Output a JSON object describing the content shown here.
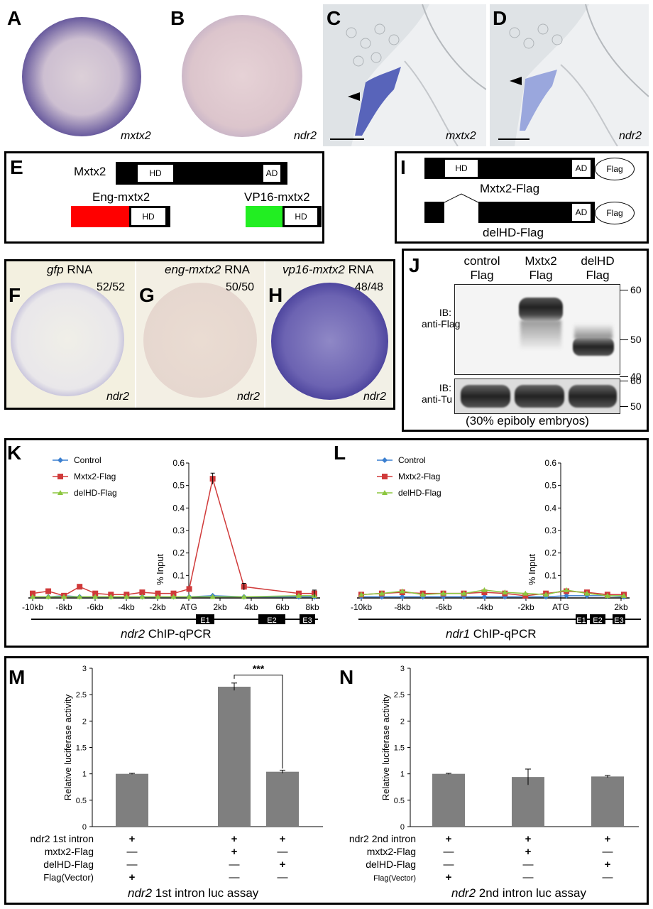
{
  "panels": {
    "A": {
      "letter": "A",
      "gene": "mxtx2"
    },
    "B": {
      "letter": "B",
      "gene": "ndr2"
    },
    "C": {
      "letter": "C",
      "gene": "mxtx2"
    },
    "D": {
      "letter": "D",
      "gene": "ndr2"
    },
    "E": {
      "letter": "E",
      "construct": "Mxtx2",
      "hd": "HD",
      "ad": "AD",
      "eng": "Eng-mxtx2",
      "vp16": "VP16-mxtx2"
    },
    "F": {
      "letter": "F",
      "title_gene": "gfp",
      "title_suffix": " RNA",
      "count": "52/52",
      "gene": "ndr2"
    },
    "G": {
      "letter": "G",
      "title_gene": "eng-mxtx2",
      "title_suffix": " RNA",
      "count": "50/50",
      "gene": "ndr2"
    },
    "H": {
      "letter": "H",
      "title_gene": "vp16-mxtx2",
      "title_suffix": " RNA",
      "count": "48/48",
      "gene": "ndr2"
    },
    "I": {
      "letter": "I",
      "hd": "HD",
      "ad": "AD",
      "flag": "Flag",
      "label1": "Mxtx2-Flag",
      "label2": "delHD-Flag"
    },
    "J": {
      "letter": "J",
      "lanes": [
        "control\nFlag",
        "Mxtx2\nFlag",
        "delHD\nFlag"
      ],
      "blot1_label": "IB:\nanti-Flag",
      "blot2_label": "IB:\nanti-Tu",
      "markers_top": [
        "60",
        "50",
        "40"
      ],
      "markers_bottom": [
        "60",
        "50"
      ],
      "caption": "(30% epiboly embryos)"
    },
    "K": {
      "letter": "K",
      "caption_gene": "ndr2",
      "caption_rest": " ChIP-qPCR"
    },
    "L": {
      "letter": "L",
      "caption_gene": "ndr1",
      "caption_rest": " ChIP-qPCR"
    },
    "M": {
      "letter": "M",
      "caption_gene": "ndr2",
      "caption_rest": " 1st intron luc assay"
    },
    "N": {
      "letter": "N",
      "caption_gene": "ndr2",
      "caption_rest": " 2nd intron luc assay"
    }
  },
  "chart_data": [
    {
      "id": "K",
      "type": "line",
      "ylabel": "% Input",
      "ylim": [
        0,
        0.6
      ],
      "yticks": [
        "0.1",
        "0.2",
        "0.3",
        "0.4",
        "0.5",
        "0.6"
      ],
      "xticks": [
        "-10kb",
        "-8kb",
        "-6kb",
        "-4kb",
        "-2kb",
        "ATG",
        "2kb",
        "4kb",
        "6kb",
        "8kb"
      ],
      "x": [
        -10,
        -9,
        -8,
        -7,
        -6,
        -5,
        -4,
        -3,
        -2,
        -1,
        0,
        1.5,
        3.5,
        7,
        8
      ],
      "series": [
        {
          "name": "Control",
          "color": "#3a7fd0",
          "values": [
            0.005,
            0.005,
            0.01,
            0.005,
            0.005,
            0.005,
            0.005,
            0.005,
            0.005,
            0.005,
            0.005,
            0.01,
            0.005,
            0.005,
            0.005
          ]
        },
        {
          "name": "Mxtx2-Flag",
          "color": "#d03a3a",
          "values": [
            0.02,
            0.03,
            0.01,
            0.05,
            0.02,
            0.015,
            0.015,
            0.025,
            0.02,
            0.02,
            0.04,
            0.53,
            0.05,
            0.02,
            0.02
          ]
        },
        {
          "name": "delHD-Flag",
          "color": "#8cc63f",
          "values": [
            0.005,
            0.005,
            0.005,
            0.005,
            0.005,
            0.005,
            0.005,
            0.005,
            0.005,
            0.005,
            0.005,
            0.005,
            0.005,
            0.01,
            0.01
          ]
        }
      ],
      "gene_model": {
        "exons": [
          "E1",
          "E2",
          "E3"
        ]
      }
    },
    {
      "id": "L",
      "type": "line",
      "ylabel": "% Input",
      "ylim": [
        0,
        0.6
      ],
      "yticks": [
        "0.1",
        "0.2",
        "0.3",
        "0.4",
        "0.5",
        "0.6"
      ],
      "xticks": [
        "-10kb",
        "-8kb",
        "-6kb",
        "-4kb",
        "-2kb",
        "ATG",
        "2kb"
      ],
      "x": [
        -10,
        -9,
        -8,
        -7,
        -6,
        -5,
        -4,
        -3,
        -2,
        -1,
        0,
        1,
        2,
        2.8
      ],
      "series": [
        {
          "name": "Control",
          "color": "#3a7fd0",
          "values": [
            0.005,
            0.005,
            0.005,
            0.005,
            0.005,
            0.005,
            0.005,
            0.005,
            0.005,
            0.005,
            0.01,
            0.01,
            0.01,
            0.005
          ]
        },
        {
          "name": "Mxtx2-Flag",
          "color": "#d03a3a",
          "values": [
            0.015,
            0.02,
            0.025,
            0.02,
            0.02,
            0.02,
            0.025,
            0.02,
            0.01,
            0.02,
            0.03,
            0.025,
            0.015,
            0.015
          ]
        },
        {
          "name": "delHD-Flag",
          "color": "#8cc63f",
          "values": [
            0.015,
            0.02,
            0.03,
            0.015,
            0.02,
            0.02,
            0.035,
            0.025,
            0.02,
            0.015,
            0.035,
            0.02,
            0.01,
            0.01
          ]
        }
      ],
      "gene_model": {
        "exons": [
          "E1",
          "E2",
          "E3"
        ]
      }
    },
    {
      "id": "M",
      "type": "bar",
      "ylabel": "Relative luciferase activity",
      "ylim": [
        0,
        3
      ],
      "yticks": [
        "0",
        "0.5",
        "1",
        "1.5",
        "2",
        "2.5",
        "3"
      ],
      "values": [
        1.0,
        2.65,
        1.04
      ],
      "errors": [
        0.01,
        0.07,
        0.03
      ],
      "significance": "***",
      "row_labels": [
        "ndr2 1st intron",
        "mxtx2-Flag",
        "delHD-Flag",
        "Flag(Vector)"
      ],
      "signs": [
        [
          "+",
          "+",
          "+"
        ],
        [
          "—",
          "+",
          "—"
        ],
        [
          "—",
          "—",
          "+"
        ],
        [
          "+",
          "—",
          "—"
        ]
      ]
    },
    {
      "id": "N",
      "type": "bar",
      "ylabel": "Relative luciferase activity",
      "ylim": [
        0,
        3
      ],
      "yticks": [
        "0",
        "0.5",
        "1",
        "1.5",
        "2",
        "2.5",
        "3"
      ],
      "values": [
        1.0,
        0.94,
        0.95
      ],
      "errors": [
        0.01,
        0.15,
        0.02
      ],
      "row_labels": [
        "ndr2 2nd intron",
        "mxtx2-Flag",
        "delHD-Flag",
        "Flag(Vector)"
      ],
      "signs": [
        [
          "+",
          "+",
          "+"
        ],
        [
          "—",
          "+",
          "—"
        ],
        [
          "—",
          "—",
          "+"
        ],
        [
          "+",
          "—",
          "—"
        ]
      ]
    }
  ]
}
